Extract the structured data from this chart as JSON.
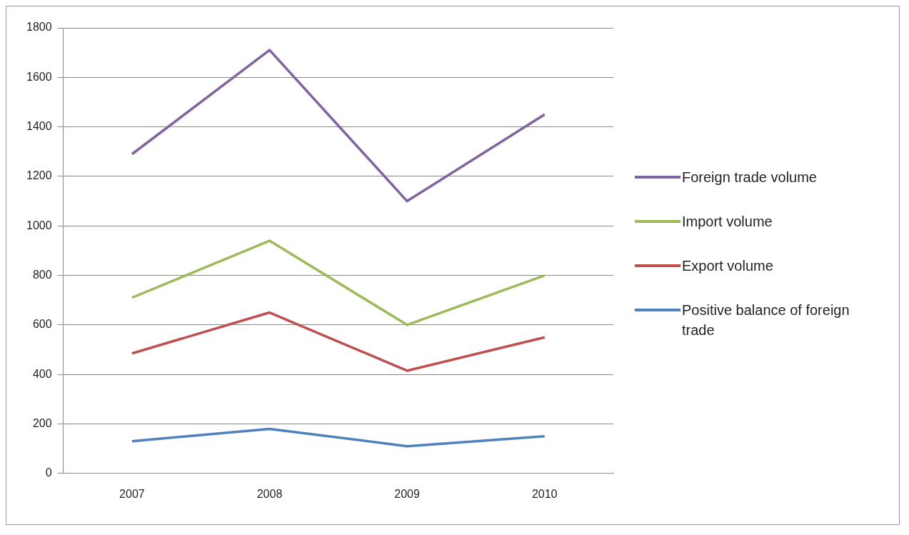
{
  "chart_data": {
    "type": "line",
    "categories": [
      "2007",
      "2008",
      "2009",
      "2010"
    ],
    "series": [
      {
        "name": "Foreign trade volume",
        "color": "#8064a2",
        "values": [
          1290,
          1710,
          1100,
          1450
        ]
      },
      {
        "name": "Import volume",
        "color": "#9bbb59",
        "values": [
          710,
          940,
          600,
          800
        ]
      },
      {
        "name": "Export volume",
        "color": "#c0504d",
        "values": [
          485,
          650,
          415,
          550
        ]
      },
      {
        "name": "Positive balance of foreign trade",
        "color": "#4f81bd",
        "values": [
          130,
          180,
          110,
          150
        ]
      }
    ],
    "ylim": [
      0,
      1800
    ],
    "yticks": [
      0,
      200,
      400,
      600,
      800,
      1000,
      1200,
      1400,
      1600,
      1800
    ],
    "grid": "y",
    "legend": "right",
    "marker": "none",
    "line_style": "solid"
  }
}
